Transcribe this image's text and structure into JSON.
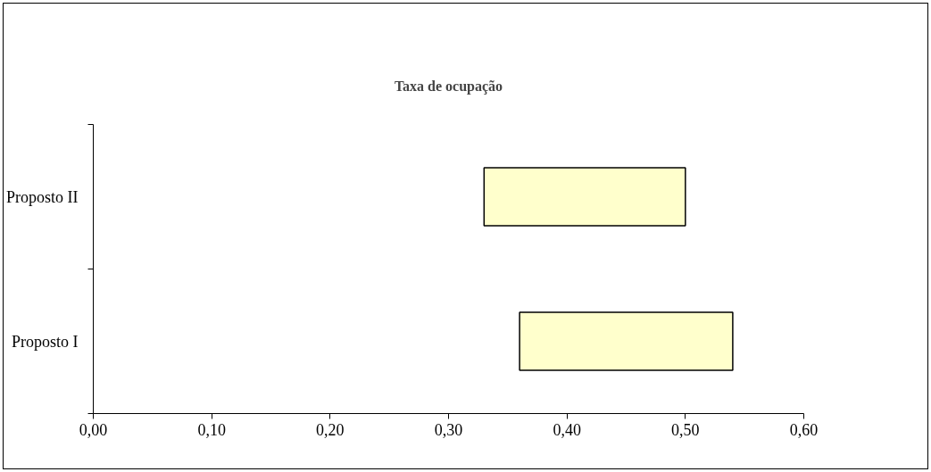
{
  "chart_data": {
    "type": "bar",
    "orientation": "horizontal",
    "title": "Taxa de ocupação",
    "categories": [
      "Proposto II",
      "Proposto I"
    ],
    "base": [
      0.33,
      0.36
    ],
    "values": [
      0.17,
      0.18
    ],
    "color": "#ffffcc",
    "xlim": [
      0,
      0.6
    ],
    "xticks": [
      {
        "value": 0,
        "label": "0,00"
      },
      {
        "value": 0.1,
        "label": "0,10"
      },
      {
        "value": 0.2,
        "label": "0,20"
      },
      {
        "value": 0.3,
        "label": "0,30"
      },
      {
        "value": 0.4,
        "label": "0,40"
      },
      {
        "value": 0.5,
        "label": "0,50"
      },
      {
        "value": 0.6,
        "label": "0,60"
      }
    ],
    "grid": false
  }
}
